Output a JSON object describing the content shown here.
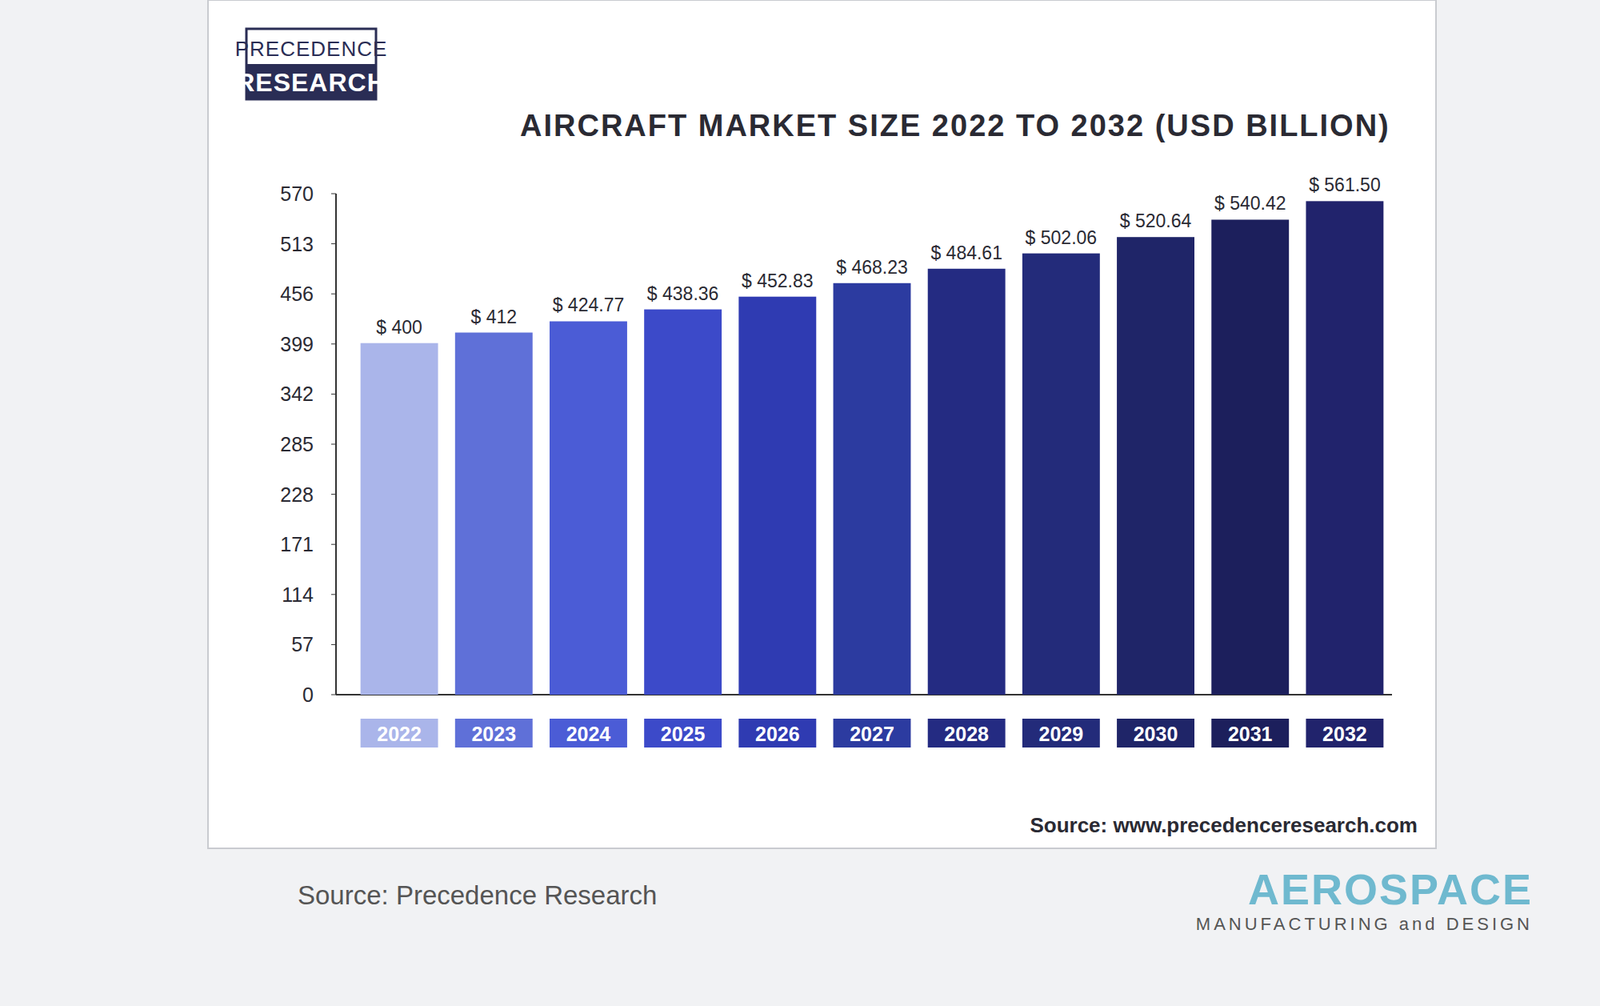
{
  "chart_data": {
    "type": "bar",
    "title": "AIRCRAFT MARKET SIZE 2022 TO 2032 (USD BILLION)",
    "categories": [
      "2022",
      "2023",
      "2024",
      "2025",
      "2026",
      "2027",
      "2028",
      "2029",
      "2030",
      "2031",
      "2032"
    ],
    "values": [
      400,
      412,
      424.77,
      438.36,
      452.83,
      468.23,
      484.61,
      502.06,
      520.64,
      540.42,
      561.5
    ],
    "value_labels": [
      "$ 400",
      "$ 412",
      "$ 424.77",
      "$ 438.36",
      "$ 452.83",
      "$ 468.23",
      "$ 484.61",
      "$ 502.06",
      "$ 520.64",
      "$ 540.42",
      "$ 561.50"
    ],
    "colors": [
      "#aab5ea",
      "#5f70d8",
      "#4b5cd6",
      "#3c4ac9",
      "#2f3bb2",
      "#2c3ba0",
      "#242b82",
      "#232b7a",
      "#1f2568",
      "#1c1f5c",
      "#21236c"
    ],
    "ylim": [
      0,
      570
    ],
    "yticks": [
      0,
      57,
      114,
      171,
      228,
      285,
      342,
      399,
      456,
      513,
      570
    ],
    "grid": false,
    "data_labels": true,
    "annotations": [
      "PRECEDENCE",
      "RESEARCH",
      "Source: www.precedenceresearch.com",
      "Source: Precedence Research",
      "AEROSPACE",
      "MANUFACTURING and DESIGN"
    ]
  }
}
